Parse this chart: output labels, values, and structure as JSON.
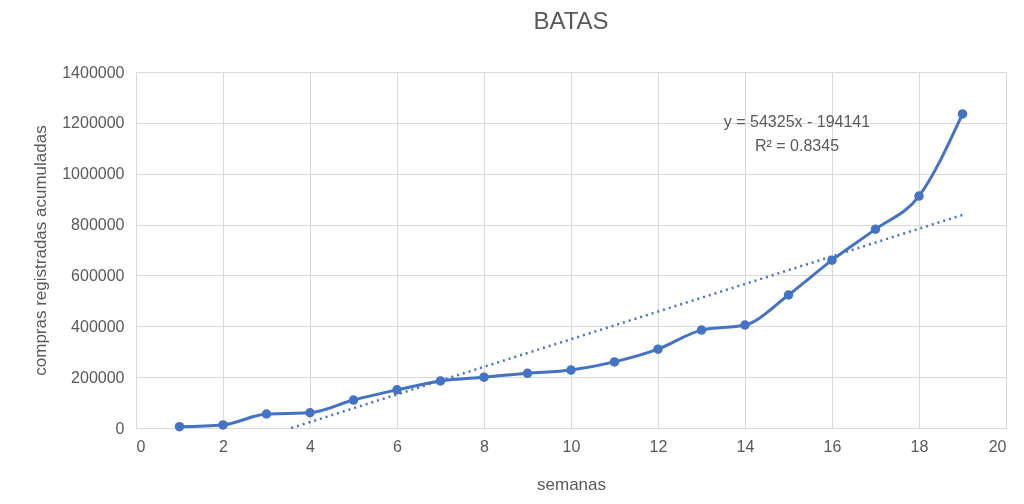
{
  "chart_data": {
    "type": "line",
    "title": "BATAS",
    "xlabel": "semanas",
    "ylabel": "compras registradas acumuladas",
    "x": [
      1,
      2,
      3,
      4,
      5,
      6,
      7,
      8,
      9,
      10,
      11,
      12,
      13,
      14,
      15,
      16,
      17,
      18,
      19
    ],
    "series": [
      {
        "color": "#4472c4",
        "values": [
          5000,
          12000,
          55000,
          60000,
          110000,
          150000,
          185000,
          200000,
          215000,
          228000,
          260000,
          310000,
          385000,
          405000,
          523000,
          660000,
          782000,
          912000,
          1235000
        ]
      },
      {
        "type": "line",
        "color": "#4472c4",
        "x": [
          3.57,
          19
        ],
        "values": [
          0,
          838000
        ],
        "line_style": "dotted",
        "marker": "none"
      }
    ],
    "xlim": [
      0,
      20
    ],
    "xticks": [
      0,
      2,
      4,
      6,
      8,
      10,
      12,
      14,
      16,
      18,
      20
    ],
    "ylim": [
      0,
      1400000
    ],
    "yticks": [
      0,
      200000,
      400000,
      600000,
      800000,
      1000000,
      1200000,
      1400000
    ],
    "grid": true,
    "marker": "circle",
    "line_style": "solid",
    "annotations": [
      "y = 54325x - 194141",
      "R² = 0.8345"
    ]
  }
}
